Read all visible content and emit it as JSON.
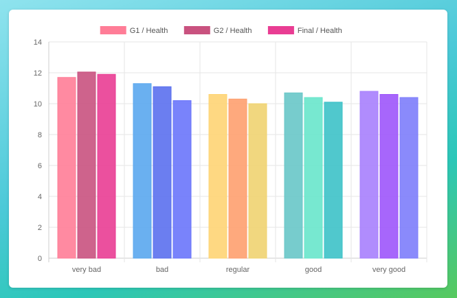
{
  "chart_data": {
    "type": "bar",
    "categories": [
      "very bad",
      "bad",
      "regular",
      "good",
      "very good"
    ],
    "series": [
      {
        "name": "G1 / Health",
        "values": [
          11.7,
          11.3,
          10.6,
          10.7,
          10.8
        ]
      },
      {
        "name": "G2 / Health",
        "values": [
          12.05,
          11.1,
          10.3,
          10.4,
          10.6
        ]
      },
      {
        "name": "Final / Health",
        "values": [
          11.9,
          10.2,
          10.0,
          10.1,
          10.4
        ]
      }
    ],
    "ylim": [
      0,
      14
    ],
    "yticks": [
      0,
      2,
      4,
      6,
      8,
      10,
      12,
      14
    ],
    "grid": true,
    "legend_position": "top-center",
    "legend_colors": [
      "#ff7d97",
      "#c9527f",
      "#e93d93"
    ],
    "bar_colors": [
      [
        "#ff7d97",
        "#c9527f",
        "#e93d93"
      ],
      [
        "#5aa7ee",
        "#5b70ee",
        "#6a75fb"
      ],
      [
        "#fed474",
        "#fea06f",
        "#f0d371"
      ],
      [
        "#68c6c8",
        "#68e6cb",
        "#3dc2c8"
      ],
      [
        "#a77ffd",
        "#9d55fb",
        "#7d7dfb"
      ]
    ],
    "xlabel": "",
    "ylabel": ""
  }
}
